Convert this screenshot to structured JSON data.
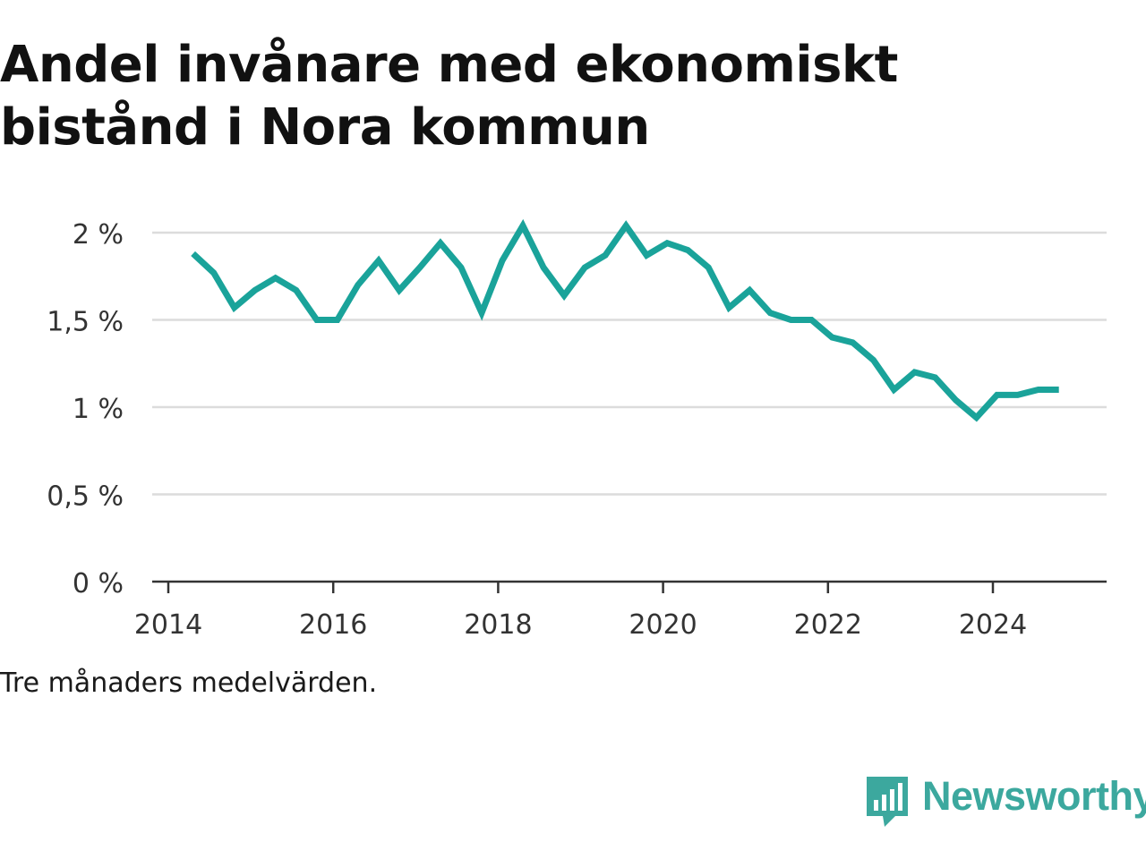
{
  "title": "Andel invånare med ekonomiskt bistånd i Nora kommun",
  "note": "Tre månaders medelvärden.",
  "brand": {
    "name": "Newsworthy",
    "icon": "newsworthy-logo-icon",
    "color": "#3ca89e"
  },
  "chart_data": {
    "type": "line",
    "title": "Andel invånare med ekonomiskt bistånd i Nora kommun",
    "xlabel": "",
    "ylabel": "",
    "ylim": [
      0,
      2
    ],
    "xlim": [
      2014,
      2025.4
    ],
    "grid": true,
    "yticks": [
      {
        "value": 0,
        "label": "0 %"
      },
      {
        "value": 0.5,
        "label": "0,5 %"
      },
      {
        "value": 1,
        "label": "1 %"
      },
      {
        "value": 1.5,
        "label": "1,5 %"
      },
      {
        "value": 2,
        "label": "2 %"
      }
    ],
    "xticks": [
      {
        "value": 2014,
        "label": "2014"
      },
      {
        "value": 2016,
        "label": "2016"
      },
      {
        "value": 2018,
        "label": "2018"
      },
      {
        "value": 2020,
        "label": "2020"
      },
      {
        "value": 2022,
        "label": "2022"
      },
      {
        "value": 2024,
        "label": "2024"
      }
    ],
    "color": "#1aa39a",
    "series": [
      {
        "x": [
          2014.3,
          2014.55,
          2014.8,
          2015.05,
          2015.3,
          2015.55,
          2015.8,
          2016.05,
          2016.3,
          2016.55,
          2016.8,
          2017.05,
          2017.3,
          2017.55,
          2017.8,
          2018.05,
          2018.3,
          2018.55,
          2018.8,
          2019.05,
          2019.3,
          2019.55,
          2019.8,
          2020.05,
          2020.3,
          2020.55,
          2020.8,
          2021.05,
          2021.3,
          2021.55,
          2021.8,
          2022.05,
          2022.3,
          2022.55,
          2022.8,
          2023.05,
          2023.3,
          2023.55,
          2023.8,
          2024.05,
          2024.3,
          2024.55,
          2024.8
        ],
        "values": [
          1.88,
          1.77,
          1.57,
          1.67,
          1.74,
          1.67,
          1.5,
          1.5,
          1.7,
          1.84,
          1.67,
          1.8,
          1.94,
          1.8,
          1.54,
          1.84,
          2.04,
          1.8,
          1.64,
          1.8,
          1.87,
          2.04,
          1.87,
          1.94,
          1.9,
          1.8,
          1.57,
          1.67,
          1.54,
          1.5,
          1.5,
          1.4,
          1.37,
          1.27,
          1.1,
          1.2,
          1.17,
          1.04,
          0.94,
          1.07,
          1.07,
          1.1,
          1.1
        ]
      }
    ]
  }
}
